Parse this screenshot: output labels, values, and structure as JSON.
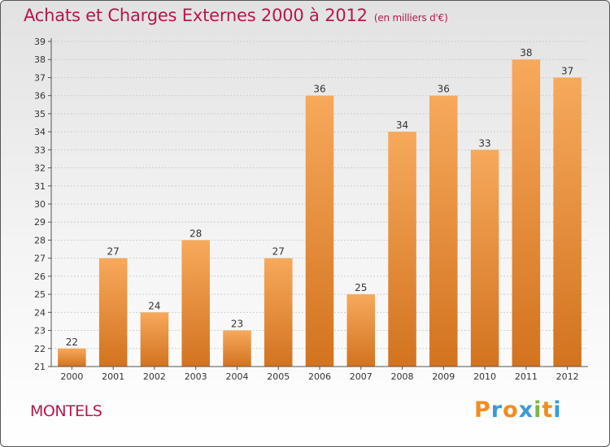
{
  "header": {
    "title": "Achats et Charges Externes 2000 à 2012",
    "unit": "(en milliers d'€)"
  },
  "commune": "MONTELS",
  "logo": {
    "text": "Proxiti",
    "letters": [
      "P",
      "r",
      "o",
      "x",
      "i",
      "t",
      "i"
    ],
    "colors": [
      "#f28c1e",
      "#3a9ad9",
      "#f28c1e",
      "#3a9ad9",
      "#7ab648",
      "#f28c1e",
      "#3a9ad9"
    ]
  },
  "colors": {
    "bar_top": "#f7a95c",
    "bar_bottom": "#d2731f",
    "title": "#b5184b"
  },
  "chart_data": {
    "type": "bar",
    "title": "Achats et Charges Externes 2000 à 2012",
    "subtitle": "(en milliers d'€)",
    "categories": [
      "2000",
      "2001",
      "2002",
      "2003",
      "2004",
      "2005",
      "2006",
      "2007",
      "2008",
      "2009",
      "2010",
      "2011",
      "2012"
    ],
    "values": [
      22,
      27,
      24,
      28,
      23,
      27,
      36,
      25,
      34,
      36,
      33,
      38,
      37
    ],
    "ylim": [
      21,
      39
    ],
    "yticks": [
      21,
      22,
      23,
      24,
      25,
      26,
      27,
      28,
      29,
      30,
      31,
      32,
      33,
      34,
      35,
      36,
      37,
      38,
      39
    ],
    "grid": true,
    "xlabel": "",
    "ylabel": ""
  }
}
